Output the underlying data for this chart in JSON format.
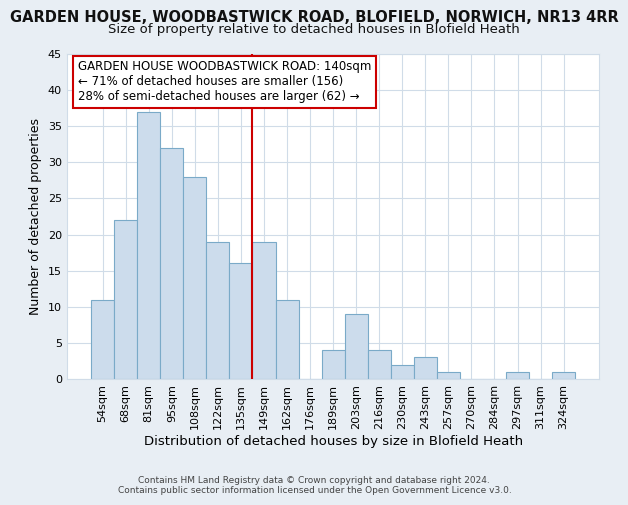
{
  "title": "GARDEN HOUSE, WOODBASTWICK ROAD, BLOFIELD, NORWICH, NR13 4RR",
  "subtitle": "Size of property relative to detached houses in Blofield Heath",
  "xlabel": "Distribution of detached houses by size in Blofield Heath",
  "ylabel": "Number of detached properties",
  "footer_lines": [
    "Contains HM Land Registry data © Crown copyright and database right 2024.",
    "Contains public sector information licensed under the Open Government Licence v3.0."
  ],
  "bins": [
    "54sqm",
    "68sqm",
    "81sqm",
    "95sqm",
    "108sqm",
    "122sqm",
    "135sqm",
    "149sqm",
    "162sqm",
    "176sqm",
    "189sqm",
    "203sqm",
    "216sqm",
    "230sqm",
    "243sqm",
    "257sqm",
    "270sqm",
    "284sqm",
    "297sqm",
    "311sqm",
    "324sqm"
  ],
  "values": [
    11,
    22,
    37,
    32,
    28,
    19,
    16,
    19,
    11,
    0,
    4,
    9,
    4,
    2,
    3,
    1,
    0,
    0,
    1,
    0,
    1
  ],
  "bar_color": "#ccdcec",
  "bar_edge_color": "#7aaac8",
  "vline_x_index": 6,
  "vline_color": "#cc0000",
  "ylim": [
    0,
    45
  ],
  "yticks": [
    0,
    5,
    10,
    15,
    20,
    25,
    30,
    35,
    40,
    45
  ],
  "background_color": "#e8eef4",
  "plot_bg_color": "#ffffff",
  "grid_color": "#d0dce8",
  "title_fontsize": 10.5,
  "subtitle_fontsize": 9.5,
  "xlabel_fontsize": 9.5,
  "ylabel_fontsize": 9,
  "tick_fontsize": 8,
  "annotation_title_text": "GARDEN HOUSE WOODBASTWICK ROAD: 140sqm",
  "annotation_text_line1": "← 71% of detached houses are smaller (156)",
  "annotation_text_line2": "28% of semi-detached houses are larger (62) →",
  "annotation_edge_color": "#cc0000",
  "annotation_fontsize": 8.5
}
